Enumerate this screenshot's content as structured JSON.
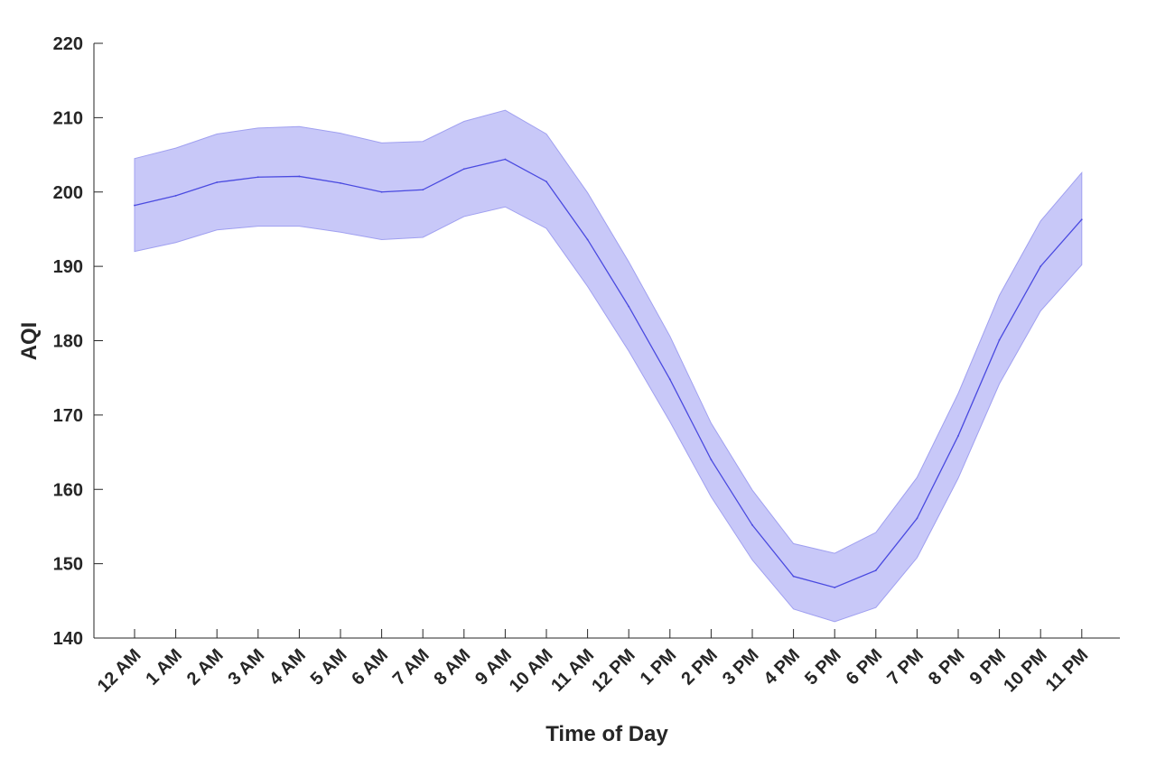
{
  "chart_data": {
    "type": "area",
    "title": "",
    "xlabel": "Time of Day",
    "ylabel": "AQI",
    "ylim": [
      140,
      220
    ],
    "yticks": [
      140,
      150,
      160,
      170,
      180,
      190,
      200,
      210,
      220
    ],
    "categories": [
      "12 AM",
      "1 AM",
      "2 AM",
      "3 AM",
      "4 AM",
      "5 AM",
      "6 AM",
      "7 AM",
      "8 AM",
      "9 AM",
      "10 AM",
      "11 AM",
      "12 PM",
      "1 PM",
      "2 PM",
      "3 PM",
      "4 PM",
      "5 PM",
      "6 PM",
      "7 PM",
      "8 PM",
      "9 PM",
      "10 PM",
      "11 PM"
    ],
    "mean": [
      198.2,
      199.5,
      201.3,
      202.0,
      202.1,
      201.2,
      200.0,
      200.3,
      203.1,
      204.4,
      201.4,
      193.6,
      184.6,
      174.8,
      164.0,
      155.2,
      148.3,
      146.8,
      149.1,
      156.1,
      167.2,
      180.1,
      190.0,
      196.3
    ],
    "upper": [
      204.5,
      205.9,
      207.8,
      208.6,
      208.8,
      207.9,
      206.6,
      206.8,
      209.5,
      211.0,
      207.8,
      199.9,
      190.6,
      180.6,
      168.9,
      159.9,
      152.7,
      151.4,
      154.2,
      161.6,
      172.9,
      186.1,
      196.1,
      202.6
    ],
    "lower": [
      192.0,
      193.2,
      194.9,
      195.4,
      195.4,
      194.6,
      193.6,
      193.9,
      196.7,
      198.0,
      195.1,
      187.3,
      178.6,
      169.1,
      159.0,
      150.5,
      143.9,
      142.2,
      144.1,
      150.8,
      161.5,
      174.2,
      184.0,
      190.2
    ],
    "line_color": "#4a4ae0",
    "band_color": "#c8c8f8",
    "band_edge_color": "#a0a0f0",
    "grid": false
  }
}
